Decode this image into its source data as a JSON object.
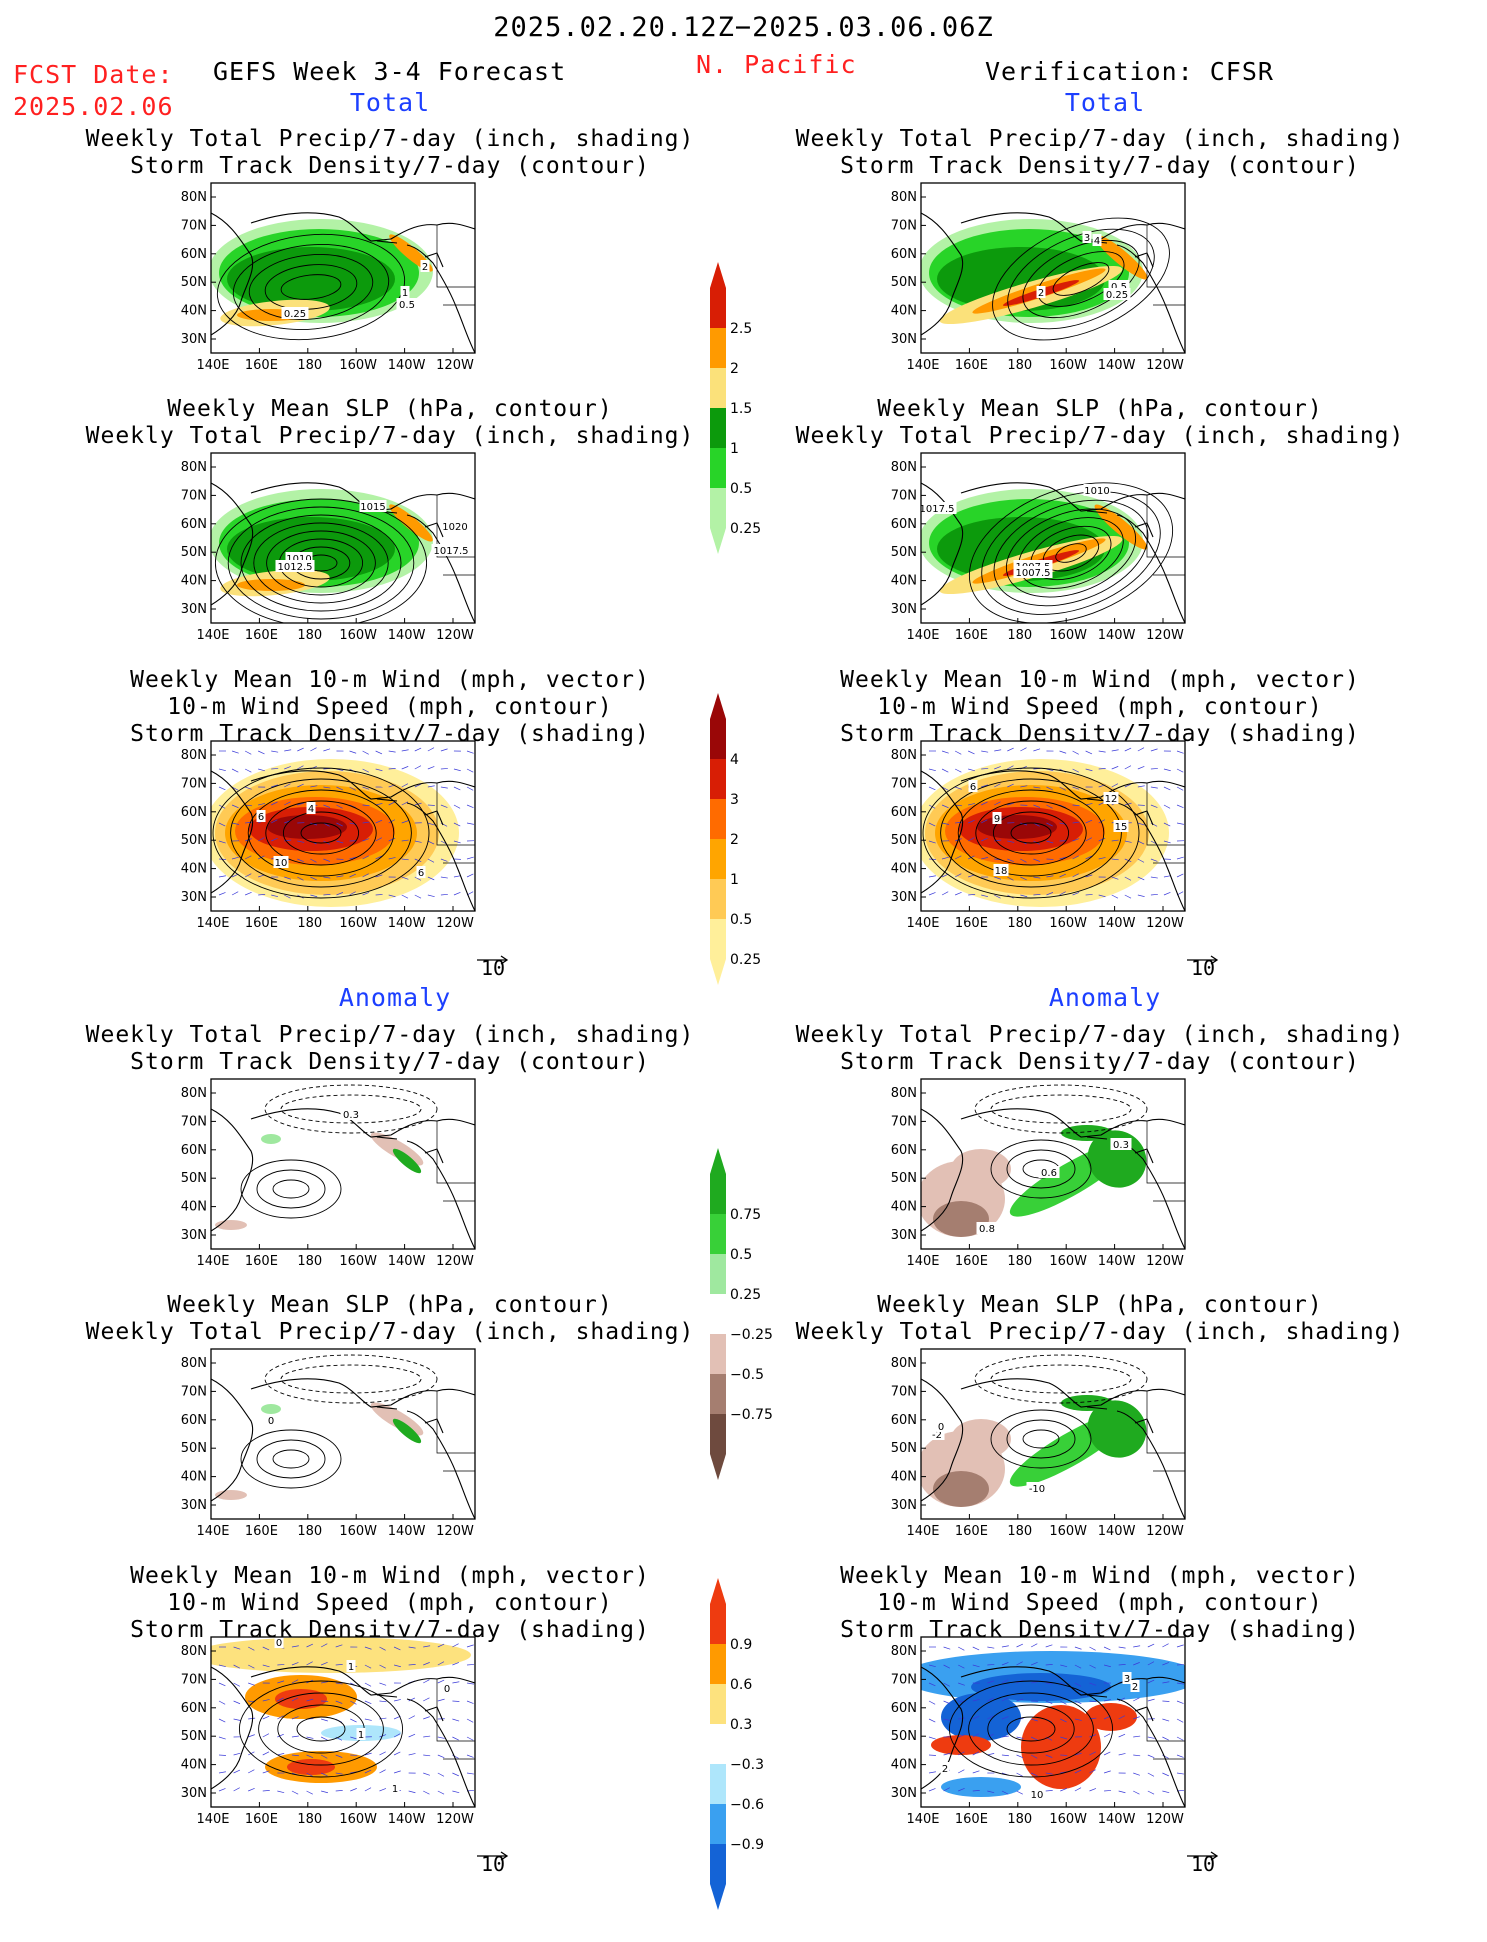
{
  "header": {
    "period": "2025.02.20.12Z−2025.03.06.06Z",
    "fcst_label": "FCST Date:",
    "fcst_date": "2025.02.06",
    "model": "GEFS Week 3-4 Forecast",
    "region": "N. Pacific",
    "verification": "Verification: CFSR"
  },
  "sections": {
    "total": "Total",
    "anomaly": "Anomaly"
  },
  "panel_titles": {
    "precip_storm": [
      "Weekly Total Precip/7-day (inch, shading)",
      "Storm Track Density/7-day (contour)"
    ],
    "slp_precip": [
      "Weekly Mean SLP (hPa, contour)",
      "Weekly Total Precip/7-day (inch, shading)"
    ],
    "wind_storm": [
      "Weekly Mean 10-m Wind (mph, vector)",
      "10-m Wind Speed (mph, contour)",
      "Storm Track Density/7-day (shading)"
    ]
  },
  "axes": {
    "lat_labels": [
      "80N",
      "70N",
      "60N",
      "50N",
      "40N",
      "30N"
    ],
    "lon_labels": [
      "140E",
      "160E",
      "180",
      "160W",
      "140W",
      "120W"
    ]
  },
  "vector_ref": "10",
  "colorbars": {
    "precip_total": {
      "labels": [
        "2.5",
        "2",
        "1.5",
        "1",
        "0.5",
        "0.25"
      ],
      "colors": [
        "#d81e05",
        "#ff9a00",
        "#fbe17a",
        "#0c9a0c",
        "#28d428",
        "#b3f2a6"
      ]
    },
    "storm_total": {
      "labels": [
        "4",
        "3",
        "2",
        "1",
        "0.5",
        "0.25"
      ],
      "colors": [
        "#9a0707",
        "#d81e05",
        "#ff6b00",
        "#ffa500",
        "#ffca55",
        "#ffef9a"
      ]
    },
    "precip_anom": {
      "labels": [
        "0.75",
        "0.5",
        "0.25",
        "−0.25",
        "−0.5",
        "−0.75"
      ],
      "colors": [
        "#1faa1f",
        "#38d038",
        "#9fe89f",
        "#ffffff",
        "#e2c0b5",
        "#a57e70",
        "#6e4a3e"
      ]
    },
    "storm_anom": {
      "labels": [
        "0.9",
        "0.6",
        "0.3",
        "−0.3",
        "−0.6",
        "−0.9"
      ],
      "colors": [
        "#ee3b10",
        "#ff9a00",
        "#fde27e",
        "#ffffff",
        "#aee6fb",
        "#3aa0f0",
        "#1463d6"
      ]
    }
  },
  "contour_labels": {
    "L1": [
      "2",
      "1",
      "0.5",
      "0.25"
    ],
    "R1": [
      "3",
      "4",
      "2",
      "0.5",
      "0.25"
    ],
    "L2": [
      "1015",
      "1020",
      "1017.5",
      "1010",
      "1012.5"
    ],
    "R2": [
      "1010",
      "1017.5",
      "1007.5",
      "1007.5"
    ],
    "L3": [
      "4",
      "6",
      "10",
      "6"
    ],
    "R3": [
      "12",
      "9",
      "15",
      "18",
      "6"
    ],
    "L4": [
      "0.3"
    ],
    "R4": [
      "0.3",
      "0.6",
      "0.8"
    ],
    "L5": [
      "0"
    ],
    "R5": [
      "-2",
      "-10",
      "0"
    ],
    "L6": [
      "0",
      "1",
      "0",
      "1",
      "1"
    ],
    "R6": [
      "3",
      "2",
      "2",
      "10"
    ]
  }
}
